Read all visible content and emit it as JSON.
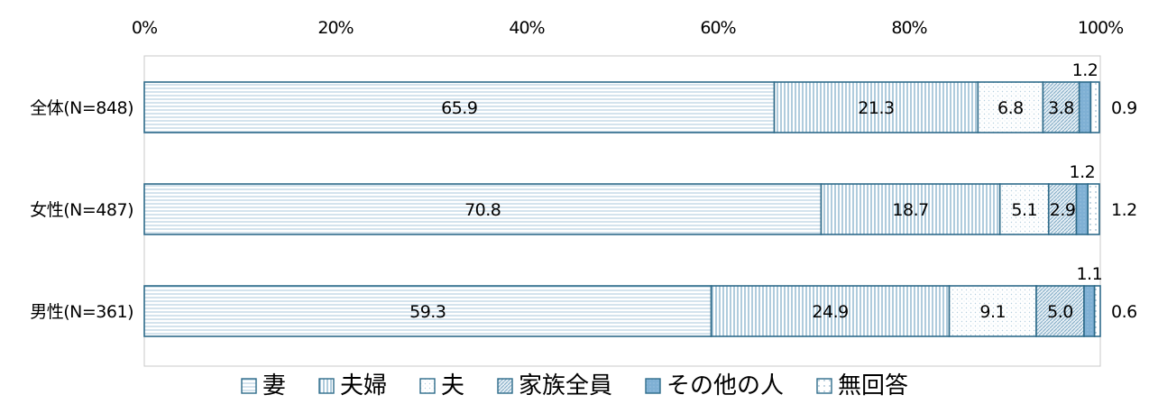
{
  "chart_data": {
    "type": "bar",
    "orientation": "horizontal-stacked-100",
    "categories": [
      "全体(N=848)",
      "女性(N=487)",
      "男性(N=361)"
    ],
    "series": [
      {
        "name": "妻",
        "values": [
          65.9,
          70.8,
          59.3
        ]
      },
      {
        "name": "夫婦",
        "values": [
          21.3,
          18.7,
          24.9
        ]
      },
      {
        "name": "夫",
        "values": [
          6.8,
          5.1,
          9.1
        ]
      },
      {
        "name": "家族全員",
        "values": [
          3.8,
          2.9,
          5.0
        ]
      },
      {
        "name": "その他の人",
        "values": [
          1.2,
          1.2,
          1.1
        ]
      },
      {
        "name": "無回答",
        "values": [
          0.9,
          1.2,
          0.6
        ]
      }
    ],
    "x_ticks": [
      "0%",
      "20%",
      "40%",
      "60%",
      "80%",
      "100%"
    ],
    "xlim": [
      0,
      100
    ],
    "grid": false,
    "legend_position": "bottom",
    "colors": {
      "outline": "#2e6b8a",
      "fill_light": "#ffffff",
      "pattern": "#a9c7db",
      "solid": "#7fb0d4"
    }
  }
}
